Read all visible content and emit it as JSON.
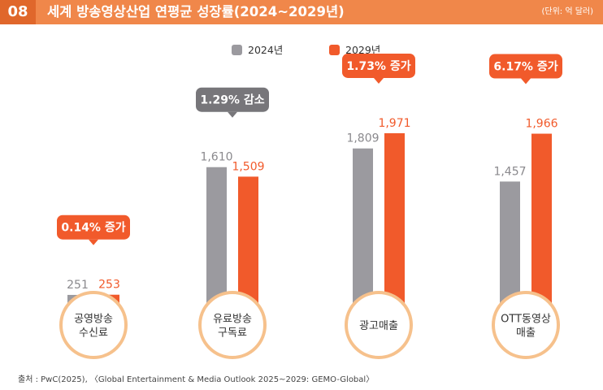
{
  "header": {
    "number": "08",
    "title": "세계 방송영상산업 연평균 성장률(2024~2029년)",
    "unit": "(단위: 억 달러)"
  },
  "source": "출처 : PwC(2025), 〈Global Entertainment & Media Outlook 2025~2029: GEMO-Global〉",
  "colors": {
    "series_2024": "#9b9a9f",
    "series_2029": "#f15a2b",
    "header": "#f0874a",
    "header_dark": "#e0672b",
    "callout_gray": "#77767a",
    "circle_ring": "#f6c18c"
  },
  "chart_data": {
    "type": "bar",
    "categories": [
      "공영방송\n수신료",
      "유료방송\n구독료",
      "광고매출",
      "OTT동영상\n매출"
    ],
    "series": [
      {
        "name": "2024년",
        "values": [
          251,
          1610,
          1809,
          1457
        ],
        "labels": [
          "251",
          "1,610",
          "1,809",
          "1,457"
        ]
      },
      {
        "name": "2029년",
        "values": [
          253,
          1509,
          1971,
          1966
        ],
        "labels": [
          "253",
          "1,509",
          "1,971",
          "1,966"
        ]
      }
    ],
    "callouts": [
      "0.14% 증가",
      "1.29% 감소",
      "1.73% 증가",
      "6.17% 증가"
    ],
    "callout_styles": [
      "increase",
      "decrease",
      "increase",
      "increase"
    ],
    "legend_position": "top-center",
    "grid": false
  }
}
